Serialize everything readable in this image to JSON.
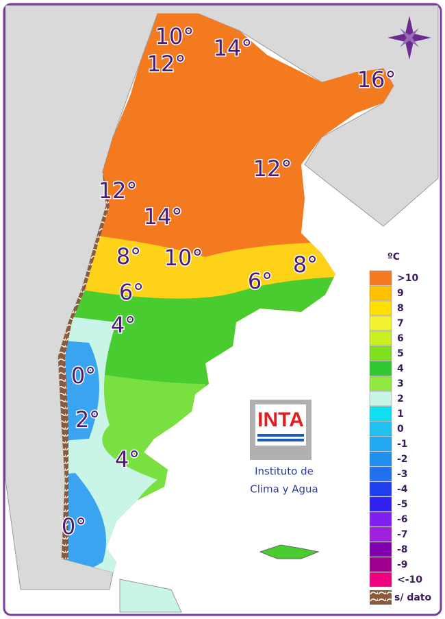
{
  "map_title_unit": "ºC",
  "contour_labels": [
    "10°",
    "14°",
    "12°",
    "16°",
    "12°",
    "12°",
    "14°",
    "8°",
    "10°",
    "8°",
    "6°",
    "6°",
    "4°",
    "0°",
    "2°",
    "4°",
    "0°"
  ],
  "legend": {
    "title": "ºC",
    "no_data": "s/ dato",
    "items": [
      {
        "label": ">10",
        "color": "#f47a20"
      },
      {
        "label": "9",
        "color": "#ffc000"
      },
      {
        "label": "8",
        "color": "#ffe000"
      },
      {
        "label": "7",
        "color": "#f2f230"
      },
      {
        "label": "6",
        "color": "#c8f020"
      },
      {
        "label": "5",
        "color": "#80e020"
      },
      {
        "label": "4",
        "color": "#30c830"
      },
      {
        "label": "3",
        "color": "#90e840"
      },
      {
        "label": "2",
        "color": "#c8f5e8"
      },
      {
        "label": "1",
        "color": "#10e0f0"
      },
      {
        "label": "0",
        "color": "#20c0f0"
      },
      {
        "label": "-1",
        "color": "#20a8f0"
      },
      {
        "label": "-2",
        "color": "#2090f0"
      },
      {
        "label": "-3",
        "color": "#2070f0"
      },
      {
        "label": "-4",
        "color": "#2040f0"
      },
      {
        "label": "-5",
        "color": "#3020f0"
      },
      {
        "label": "-6",
        "color": "#8020f0"
      },
      {
        "label": "-7",
        "color": "#a020e0"
      },
      {
        "label": "-8",
        "color": "#8000b0"
      },
      {
        "label": "-9",
        "color": "#a00090"
      },
      {
        "label": "<-10",
        "color": "#f00080"
      }
    ]
  },
  "logo": {
    "text": "INTA",
    "caption_line1": "Instituto de",
    "caption_line2": "Clima y Agua"
  }
}
